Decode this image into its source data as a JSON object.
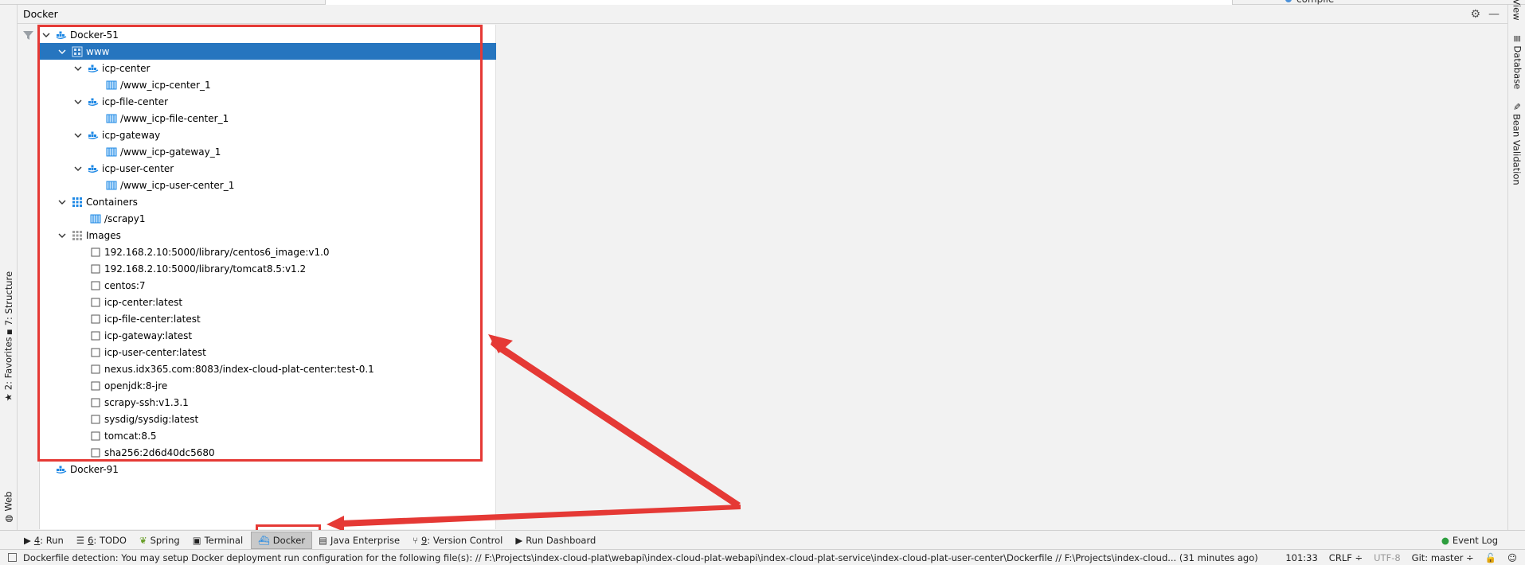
{
  "panel": {
    "title": "Docker"
  },
  "top_fragment": "compile",
  "left_tabs": {
    "structure": "7: Structure",
    "favorites": "2: Favorites",
    "web": "Web"
  },
  "right_tabs": {
    "database": "Database",
    "bean_validation": "Bean Validation",
    "top": "View"
  },
  "tree": {
    "docker51": "Docker-51",
    "www": "www",
    "icp_center": "icp-center",
    "icp_center_c": "/www_icp-center_1",
    "icp_file_center": "icp-file-center",
    "icp_file_center_c": "/www_icp-file-center_1",
    "icp_gateway": "icp-gateway",
    "icp_gateway_c": "/www_icp-gateway_1",
    "icp_user_center": "icp-user-center",
    "icp_user_center_c": "/www_icp-user-center_1",
    "containers": "Containers",
    "scrapy1": "/scrapy1",
    "images": "Images",
    "image_list": [
      "192.168.2.10:5000/library/centos6_image:v1.0",
      "192.168.2.10:5000/library/tomcat8.5:v1.2",
      "centos:7",
      "icp-center:latest",
      "icp-file-center:latest",
      "icp-gateway:latest",
      "icp-user-center:latest",
      "nexus.idx365.com:8083/index-cloud-plat-center:test-0.1",
      "openjdk:8-jre",
      "scrapy-ssh:v1.3.1",
      "sysdig/sysdig:latest",
      "tomcat:8.5",
      "sha256:2d6d40dc5680"
    ],
    "docker91": "Docker-91"
  },
  "bottom_tabs": {
    "run_m": "4",
    "run": ": Run",
    "todo_m": "6",
    "todo": ": TODO",
    "spring": "Spring",
    "terminal": "Terminal",
    "docker": "Docker",
    "java_enterprise": "Java Enterprise",
    "vc_m": "9",
    "vc": ": Version Control",
    "run_dashboard": "Run Dashboard",
    "event_log": "Event Log"
  },
  "status": {
    "message": "Dockerfile detection: You may setup Docker deployment run configuration for the following file(s): // F:\\Projects\\index-cloud-plat\\webapi\\index-cloud-plat-webapi\\index-cloud-plat-service\\index-cloud-plat-user-center\\Dockerfile // F:\\Projects\\index-cloud... (31 minutes ago)",
    "position": "101:33",
    "line_sep": "CRLF ÷",
    "encoding": "UTF-8",
    "git": "Git: master ÷"
  },
  "colors": {
    "selection": "#2675bf",
    "annotation": "#e53935",
    "docker_icon": "#1e88e5",
    "container_icon": "#1e88e5"
  }
}
